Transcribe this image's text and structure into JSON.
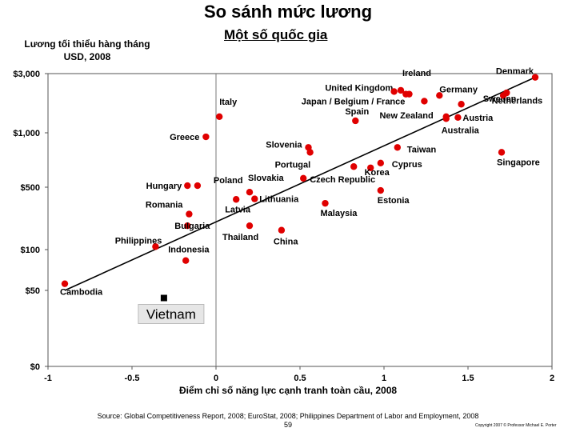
{
  "chart_data": {
    "type": "scatter",
    "title": "So sánh mức lương",
    "subtitle": "Một số quốc gia",
    "ylabel": "Lương tối thiểu hàng tháng\nUSD, 2008",
    "xlabel": "Điểm chỉ số năng lực cạnh tranh toàn cầu, 2008",
    "xlim": [
      -1,
      2
    ],
    "x_ticks": [
      "-1",
      "-0.5",
      "0",
      "0.5",
      "1",
      "1.5",
      "2"
    ],
    "x_tick_values": [
      -1,
      -0.5,
      0,
      0.5,
      1,
      1.5,
      2
    ],
    "y_scale": "log",
    "y_ticks": [
      "$3,000",
      "$1,000",
      "$500",
      "$100",
      "$50",
      "$0"
    ],
    "y_tick_values": [
      3000,
      1000,
      500,
      100,
      50,
      0
    ],
    "grid": false,
    "marker_color": "#e00000",
    "highlight_color": "#000000",
    "points": [
      {
        "label": "Denmark",
        "x": 1.9,
        "y": 2800
      },
      {
        "label": "Sweden",
        "x": 1.73,
        "y": 2100
      },
      {
        "label": "",
        "x": 1.71,
        "y": 2000
      },
      {
        "label": "Ireland",
        "x": 1.1,
        "y": 2200
      },
      {
        "label": "United Kingdom",
        "x": 1.13,
        "y": 2050
      },
      {
        "label": "",
        "x": 1.15,
        "y": 2050
      },
      {
        "label": "",
        "x": 1.06,
        "y": 2150
      },
      {
        "label": "Germany",
        "x": 1.33,
        "y": 2000
      },
      {
        "label": "Netherlands",
        "x": 1.46,
        "y": 1700
      },
      {
        "label": "Japan / Belgium / France",
        "x": 1.24,
        "y": 1800
      },
      {
        "label": "Italy",
        "x": 0.02,
        "y": 1350
      },
      {
        "label": "Austria",
        "x": 1.44,
        "y": 1330
      },
      {
        "label": "New Zealand",
        "x": 1.37,
        "y": 1350
      },
      {
        "label": "Spain",
        "x": 0.83,
        "y": 1250
      },
      {
        "label": "Australia",
        "x": 1.37,
        "y": 1300
      },
      {
        "label": "Greece",
        "x": -0.06,
        "y": 950
      },
      {
        "label": "Slovenia",
        "x": 0.55,
        "y": 830
      },
      {
        "label": "",
        "x": 0.56,
        "y": 780
      },
      {
        "label": "Taiwan",
        "x": 1.08,
        "y": 830
      },
      {
        "label": "Portugal",
        "x": 0.82,
        "y": 650
      },
      {
        "label": "Cyprus",
        "x": 0.98,
        "y": 680
      },
      {
        "label": "Singapore",
        "x": 1.7,
        "y": 780
      },
      {
        "label": "Korea",
        "x": 0.92,
        "y": 640
      },
      {
        "label": "Czech Republic",
        "x": 0.52,
        "y": 560
      },
      {
        "label": "Poland",
        "x": -0.11,
        "y": 510
      },
      {
        "label": "Hungary",
        "x": -0.17,
        "y": 510
      },
      {
        "label": "Slovakia",
        "x": 0.2,
        "y": 440
      },
      {
        "label": "Estonia",
        "x": 0.98,
        "y": 460
      },
      {
        "label": "Lithuania",
        "x": 0.23,
        "y": 370
      },
      {
        "label": "Latvia",
        "x": 0.12,
        "y": 365
      },
      {
        "label": "Malaysia",
        "x": 0.65,
        "y": 330
      },
      {
        "label": "Romania",
        "x": -0.16,
        "y": 250
      },
      {
        "label": "Bulgaria",
        "x": -0.17,
        "y": 185
      },
      {
        "label": "Thailand",
        "x": 0.2,
        "y": 185
      },
      {
        "label": "China",
        "x": 0.39,
        "y": 165
      },
      {
        "label": "Philippines",
        "x": -0.36,
        "y": 108
      },
      {
        "label": "Indonesia",
        "x": -0.18,
        "y": 83
      },
      {
        "label": "Cambodia",
        "x": -0.9,
        "y": 56
      },
      {
        "label": "Vietnam",
        "x": -0.31,
        "y": 45,
        "highlight": true
      }
    ],
    "trendline": {
      "x": [
        -0.9,
        1.9
      ],
      "y": [
        50,
        2800
      ]
    }
  },
  "source": "Source: Global Competitiveness Report, 2008; EuroStat, 2008; Philippines Department of Labor and Employment, 2008",
  "page_number": "59",
  "copyright": "Copyright 2007 © Professor Michael E. Porter"
}
